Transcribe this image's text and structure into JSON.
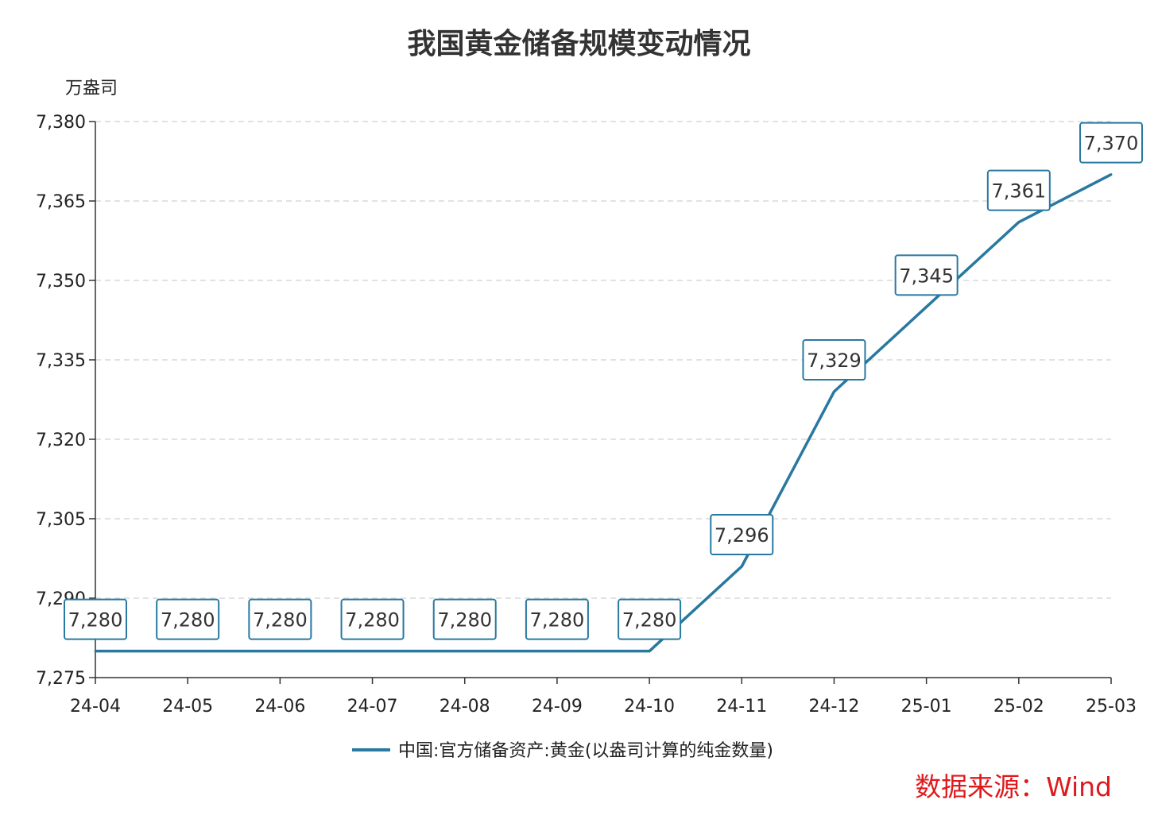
{
  "title": "我国黄金储备规模变动情况",
  "source": "数据来源：Wind",
  "colors": {
    "line": "#2878a0",
    "grid": "#d9d9d9",
    "axis": "#333333",
    "source": "#e0191c"
  },
  "chart_data": {
    "type": "line",
    "ylabel": "万盎司",
    "ylim": [
      7275,
      7380
    ],
    "yticks": [
      7275,
      7290,
      7305,
      7320,
      7335,
      7350,
      7365,
      7380
    ],
    "ytick_labels": [
      "7,275",
      "7,290",
      "7,305",
      "7,320",
      "7,335",
      "7,350",
      "7,365",
      "7,380"
    ],
    "categories": [
      "24-04",
      "24-05",
      "24-06",
      "24-07",
      "24-08",
      "24-09",
      "24-10",
      "24-11",
      "24-12",
      "25-01",
      "25-02",
      "25-03"
    ],
    "grid": true,
    "legend_position": "bottom",
    "series": [
      {
        "name": "中国:官方储备资产:黄金(以盎司计算的纯金数量)",
        "values": [
          7280,
          7280,
          7280,
          7280,
          7280,
          7280,
          7280,
          7296,
          7329,
          7345,
          7361,
          7370
        ],
        "labels": [
          "7,280",
          "7,280",
          "7,280",
          "7,280",
          "7,280",
          "7,280",
          "7,280",
          "7,296",
          "7,329",
          "7,345",
          "7,361",
          "7,370"
        ]
      }
    ]
  }
}
